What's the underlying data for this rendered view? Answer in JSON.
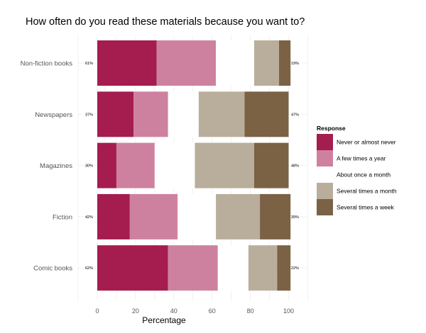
{
  "chart_data": {
    "type": "bar",
    "subtype": "diverging-stacked-horizontal",
    "title": "How often do you read these materials because you want to?",
    "xlabel": "Percentage",
    "ylabel": "",
    "xlim": [
      0,
      100
    ],
    "x_ticks": [
      "0",
      "20",
      "40",
      "60",
      "80",
      "100"
    ],
    "grid": true,
    "legend_position": "right",
    "legend_title": "Response",
    "categories": [
      "Non-fiction books",
      "Newspapers",
      "Magazines",
      "Fiction",
      "Comic books"
    ],
    "series": [
      {
        "name": "Never or almost never",
        "color": "#a51c4f",
        "values": [
          31,
          19,
          10,
          17,
          37
        ]
      },
      {
        "name": "A few times a year",
        "color": "#ce819f",
        "values": [
          31,
          18,
          20,
          25,
          26
        ]
      },
      {
        "name": "About once a month",
        "color": "#ffffff",
        "values": [
          20,
          16,
          21,
          20,
          16
        ]
      },
      {
        "name": "Several times a month",
        "color": "#b9ae9c",
        "values": [
          13,
          24,
          31,
          23,
          15
        ]
      },
      {
        "name": "Several times a week",
        "color": "#7b6245",
        "values": [
          6,
          23,
          18,
          16,
          7
        ]
      }
    ],
    "left_labels": [
      "61%",
      "37%",
      "30%",
      "42%",
      "62%"
    ],
    "right_labels": [
      "19%",
      "47%",
      "48%",
      "39%",
      "22%"
    ]
  }
}
